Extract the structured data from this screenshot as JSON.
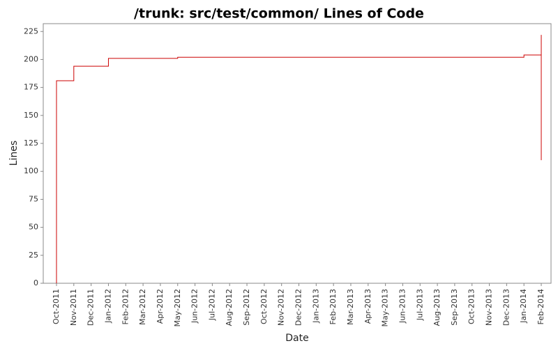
{
  "chart_data": {
    "type": "step",
    "title": "/trunk: src/test/common/ Lines of Code",
    "x_label": "Date",
    "y_label": "Lines",
    "xticks": [
      "Oct-2011",
      "Nov-2011",
      "Dec-2011",
      "Jan-2012",
      "Feb-2012",
      "Mar-2012",
      "Apr-2012",
      "May-2012",
      "Jun-2012",
      "Jul-2012",
      "Aug-2012",
      "Sep-2012",
      "Oct-2012",
      "Nov-2012",
      "Dec-2012",
      "Jan-2013",
      "Feb-2013",
      "Mar-2013",
      "Apr-2013",
      "May-2013",
      "Jun-2013",
      "Jul-2013",
      "Aug-2013",
      "Sep-2013",
      "Oct-2013",
      "Nov-2013",
      "Dec-2013",
      "Jan-2014",
      "Feb-2014"
    ],
    "series": [
      {
        "color": "#cc0000",
        "x": [
          "Oct-2011",
          "Oct-2011",
          "Oct-2011",
          "Nov-2011",
          "Jan-2012",
          "Jan-2012",
          "May-2012",
          "Jan-2014",
          "Feb-2014",
          "Feb-2014",
          "Feb-2014"
        ],
        "values": [
          0,
          55,
          181,
          194,
          197,
          201,
          202,
          204,
          212,
          222,
          110
        ]
      }
    ],
    "ylim": [
      0,
      232
    ],
    "yticks": [
      0,
      25,
      50,
      75,
      100,
      125,
      150,
      175,
      200,
      225
    ]
  }
}
